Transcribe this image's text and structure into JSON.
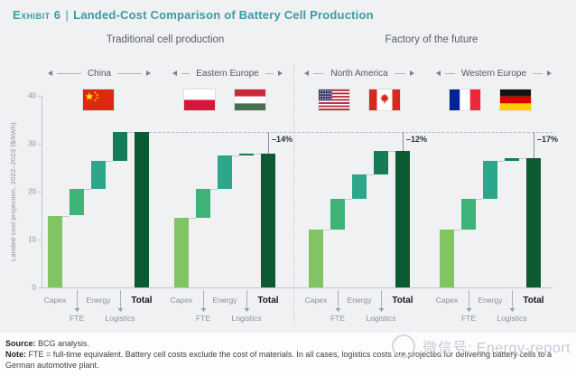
{
  "header": {
    "exhibit": "Exhibit 6",
    "separator": "|",
    "title": "Landed-Cost Comparison of Battery Cell Production"
  },
  "groups": [
    {
      "label": "Traditional cell production"
    },
    {
      "label": "Factory of the future"
    }
  ],
  "chart_data": {
    "type": "bar",
    "subtype": "waterfall",
    "title": "Landed-Cost Comparison of Battery Cell Production",
    "ylabel": "Landed-cost projection, 2022–2023 ($/kWh)",
    "ylim": [
      0,
      40
    ],
    "yticks": [
      0,
      10,
      20,
      30,
      40
    ],
    "grid": false,
    "categories": [
      "Capex",
      "FTE",
      "Energy",
      "Logistics",
      "Total"
    ],
    "segment_colors": [
      "#82C463",
      "#3FB377",
      "#2CA78C",
      "#157C57",
      "#0C5A31"
    ],
    "reference": "China total",
    "charts": [
      {
        "region": "China",
        "group": "Traditional cell production",
        "flags": [
          "china"
        ],
        "segments": [
          15,
          5.5,
          6,
          6
        ],
        "total": 32.5,
        "delta": null
      },
      {
        "region": "Eastern Europe",
        "group": "Traditional cell production",
        "flags": [
          "poland",
          "hungary"
        ],
        "segments": [
          14.5,
          6,
          7,
          0.5
        ],
        "total": 28,
        "delta": "–14%"
      },
      {
        "region": "North America",
        "group": "Factory of the future",
        "flags": [
          "usa",
          "canada"
        ],
        "segments": [
          12,
          6.5,
          5,
          5
        ],
        "total": 28.5,
        "delta": "–12%"
      },
      {
        "region": "Western Europe",
        "group": "Factory of the future",
        "flags": [
          "france",
          "germany"
        ],
        "segments": [
          12,
          6.5,
          8,
          0.5
        ],
        "total": 27,
        "delta": "–17%"
      }
    ]
  },
  "footer": {
    "source_label": "Source:",
    "source_text": "BCG analysis.",
    "note_label": "Note:",
    "note_text": "FTE = full-time equivalent. Battery cell costs exclude the cost of materials. In all cases, logistics costs are projected for delivering battery cells to a German automotive plant."
  },
  "watermark": {
    "text": "微信号: Energy-report"
  }
}
